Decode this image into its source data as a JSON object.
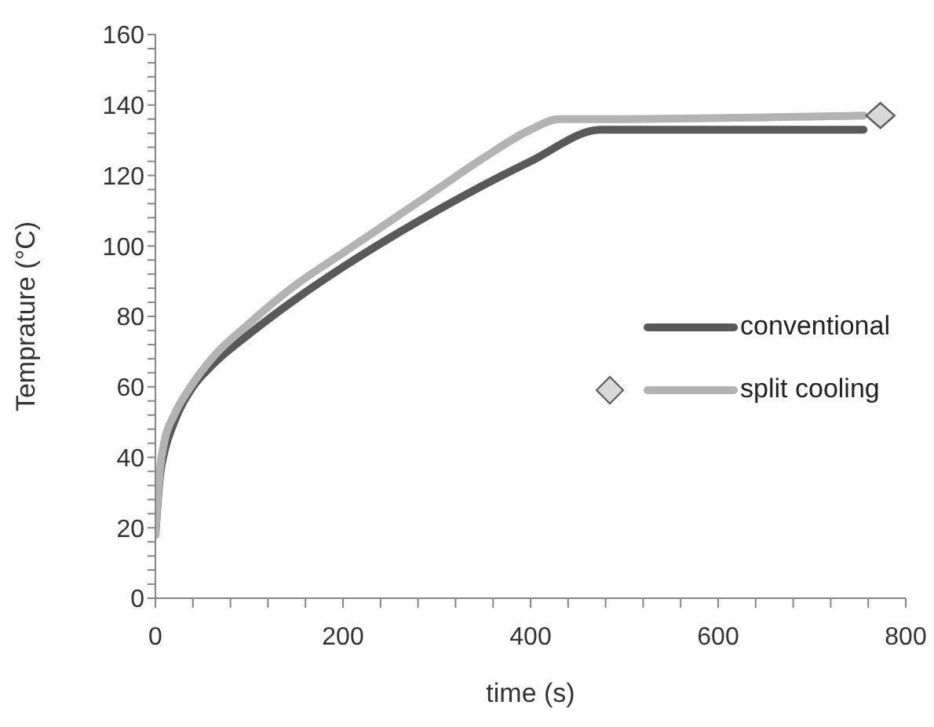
{
  "chart_data": {
    "type": "line",
    "xlabel": "time (s)",
    "ylabel": "Temprature (°C)",
    "xlim": [
      0,
      800
    ],
    "ylim": [
      0,
      160
    ],
    "xticks": [
      0,
      {
        "value": 40,
        "label": null
      },
      {
        "value": 80,
        "label": null
      },
      {
        "value": 120,
        "label": null
      },
      {
        "value": 160,
        "label": null
      },
      200,
      {
        "value": 240,
        "label": null
      },
      {
        "value": 280,
        "label": null
      },
      {
        "value": 320,
        "label": null
      },
      {
        "value": 360,
        "label": null
      },
      400,
      {
        "value": 440,
        "label": null
      },
      {
        "value": 480,
        "label": null
      },
      {
        "value": 520,
        "label": null
      },
      {
        "value": 560,
        "label": null
      },
      600,
      {
        "value": 640,
        "label": null
      },
      {
        "value": 680,
        "label": null
      },
      {
        "value": 720,
        "label": null
      },
      {
        "value": 760,
        "label": null
      },
      800
    ],
    "yticks": [
      0,
      {
        "value": 4,
        "label": null
      },
      {
        "value": 8,
        "label": null
      },
      {
        "value": 12,
        "label": null
      },
      {
        "value": 16,
        "label": null
      },
      20,
      {
        "value": 24,
        "label": null
      },
      {
        "value": 28,
        "label": null
      },
      {
        "value": 32,
        "label": null
      },
      {
        "value": 36,
        "label": null
      },
      40,
      {
        "value": 44,
        "label": null
      },
      {
        "value": 48,
        "label": null
      },
      {
        "value": 52,
        "label": null
      },
      {
        "value": 56,
        "label": null
      },
      60,
      {
        "value": 64,
        "label": null
      },
      {
        "value": 68,
        "label": null
      },
      {
        "value": 72,
        "label": null
      },
      {
        "value": 76,
        "label": null
      },
      80,
      {
        "value": 84,
        "label": null
      },
      {
        "value": 88,
        "label": null
      },
      {
        "value": 92,
        "label": null
      },
      {
        "value": 96,
        "label": null
      },
      100,
      {
        "value": 104,
        "label": null
      },
      {
        "value": 108,
        "label": null
      },
      {
        "value": 112,
        "label": null
      },
      {
        "value": 116,
        "label": null
      },
      120,
      {
        "value": 124,
        "label": null
      },
      {
        "value": 128,
        "label": null
      },
      {
        "value": 132,
        "label": null
      },
      {
        "value": 136,
        "label": null
      },
      140,
      {
        "value": 144,
        "label": null
      },
      {
        "value": 148,
        "label": null
      },
      {
        "value": 152,
        "label": null
      },
      {
        "value": 156,
        "label": null
      },
      160
    ],
    "legend": "right",
    "marker": "none",
    "series": [
      {
        "name": "conventional",
        "color": "#595959",
        "x": [
          0,
          5,
          10,
          20,
          40,
          60,
          100,
          150,
          200,
          300,
          400,
          475,
          500,
          755
        ],
        "values": [
          18,
          35,
          42,
          50,
          60,
          66,
          75,
          85,
          94,
          110,
          124,
          133,
          133,
          133
        ]
      },
      {
        "name": "split cooling",
        "color": "#b3b3b3",
        "x": [
          0,
          5,
          10,
          20,
          40,
          60,
          100,
          150,
          200,
          300,
          350,
          400,
          430,
          470,
          755
        ],
        "values": [
          18,
          37,
          45,
          52,
          61,
          68,
          78,
          89,
          98,
          116,
          125,
          133,
          136,
          136,
          137
        ]
      },
      {
        "type": "scatter",
        "marker": "diamond",
        "color": "#d9d9d9",
        "x": [
          773
        ],
        "values": [
          137
        ]
      }
    ]
  }
}
